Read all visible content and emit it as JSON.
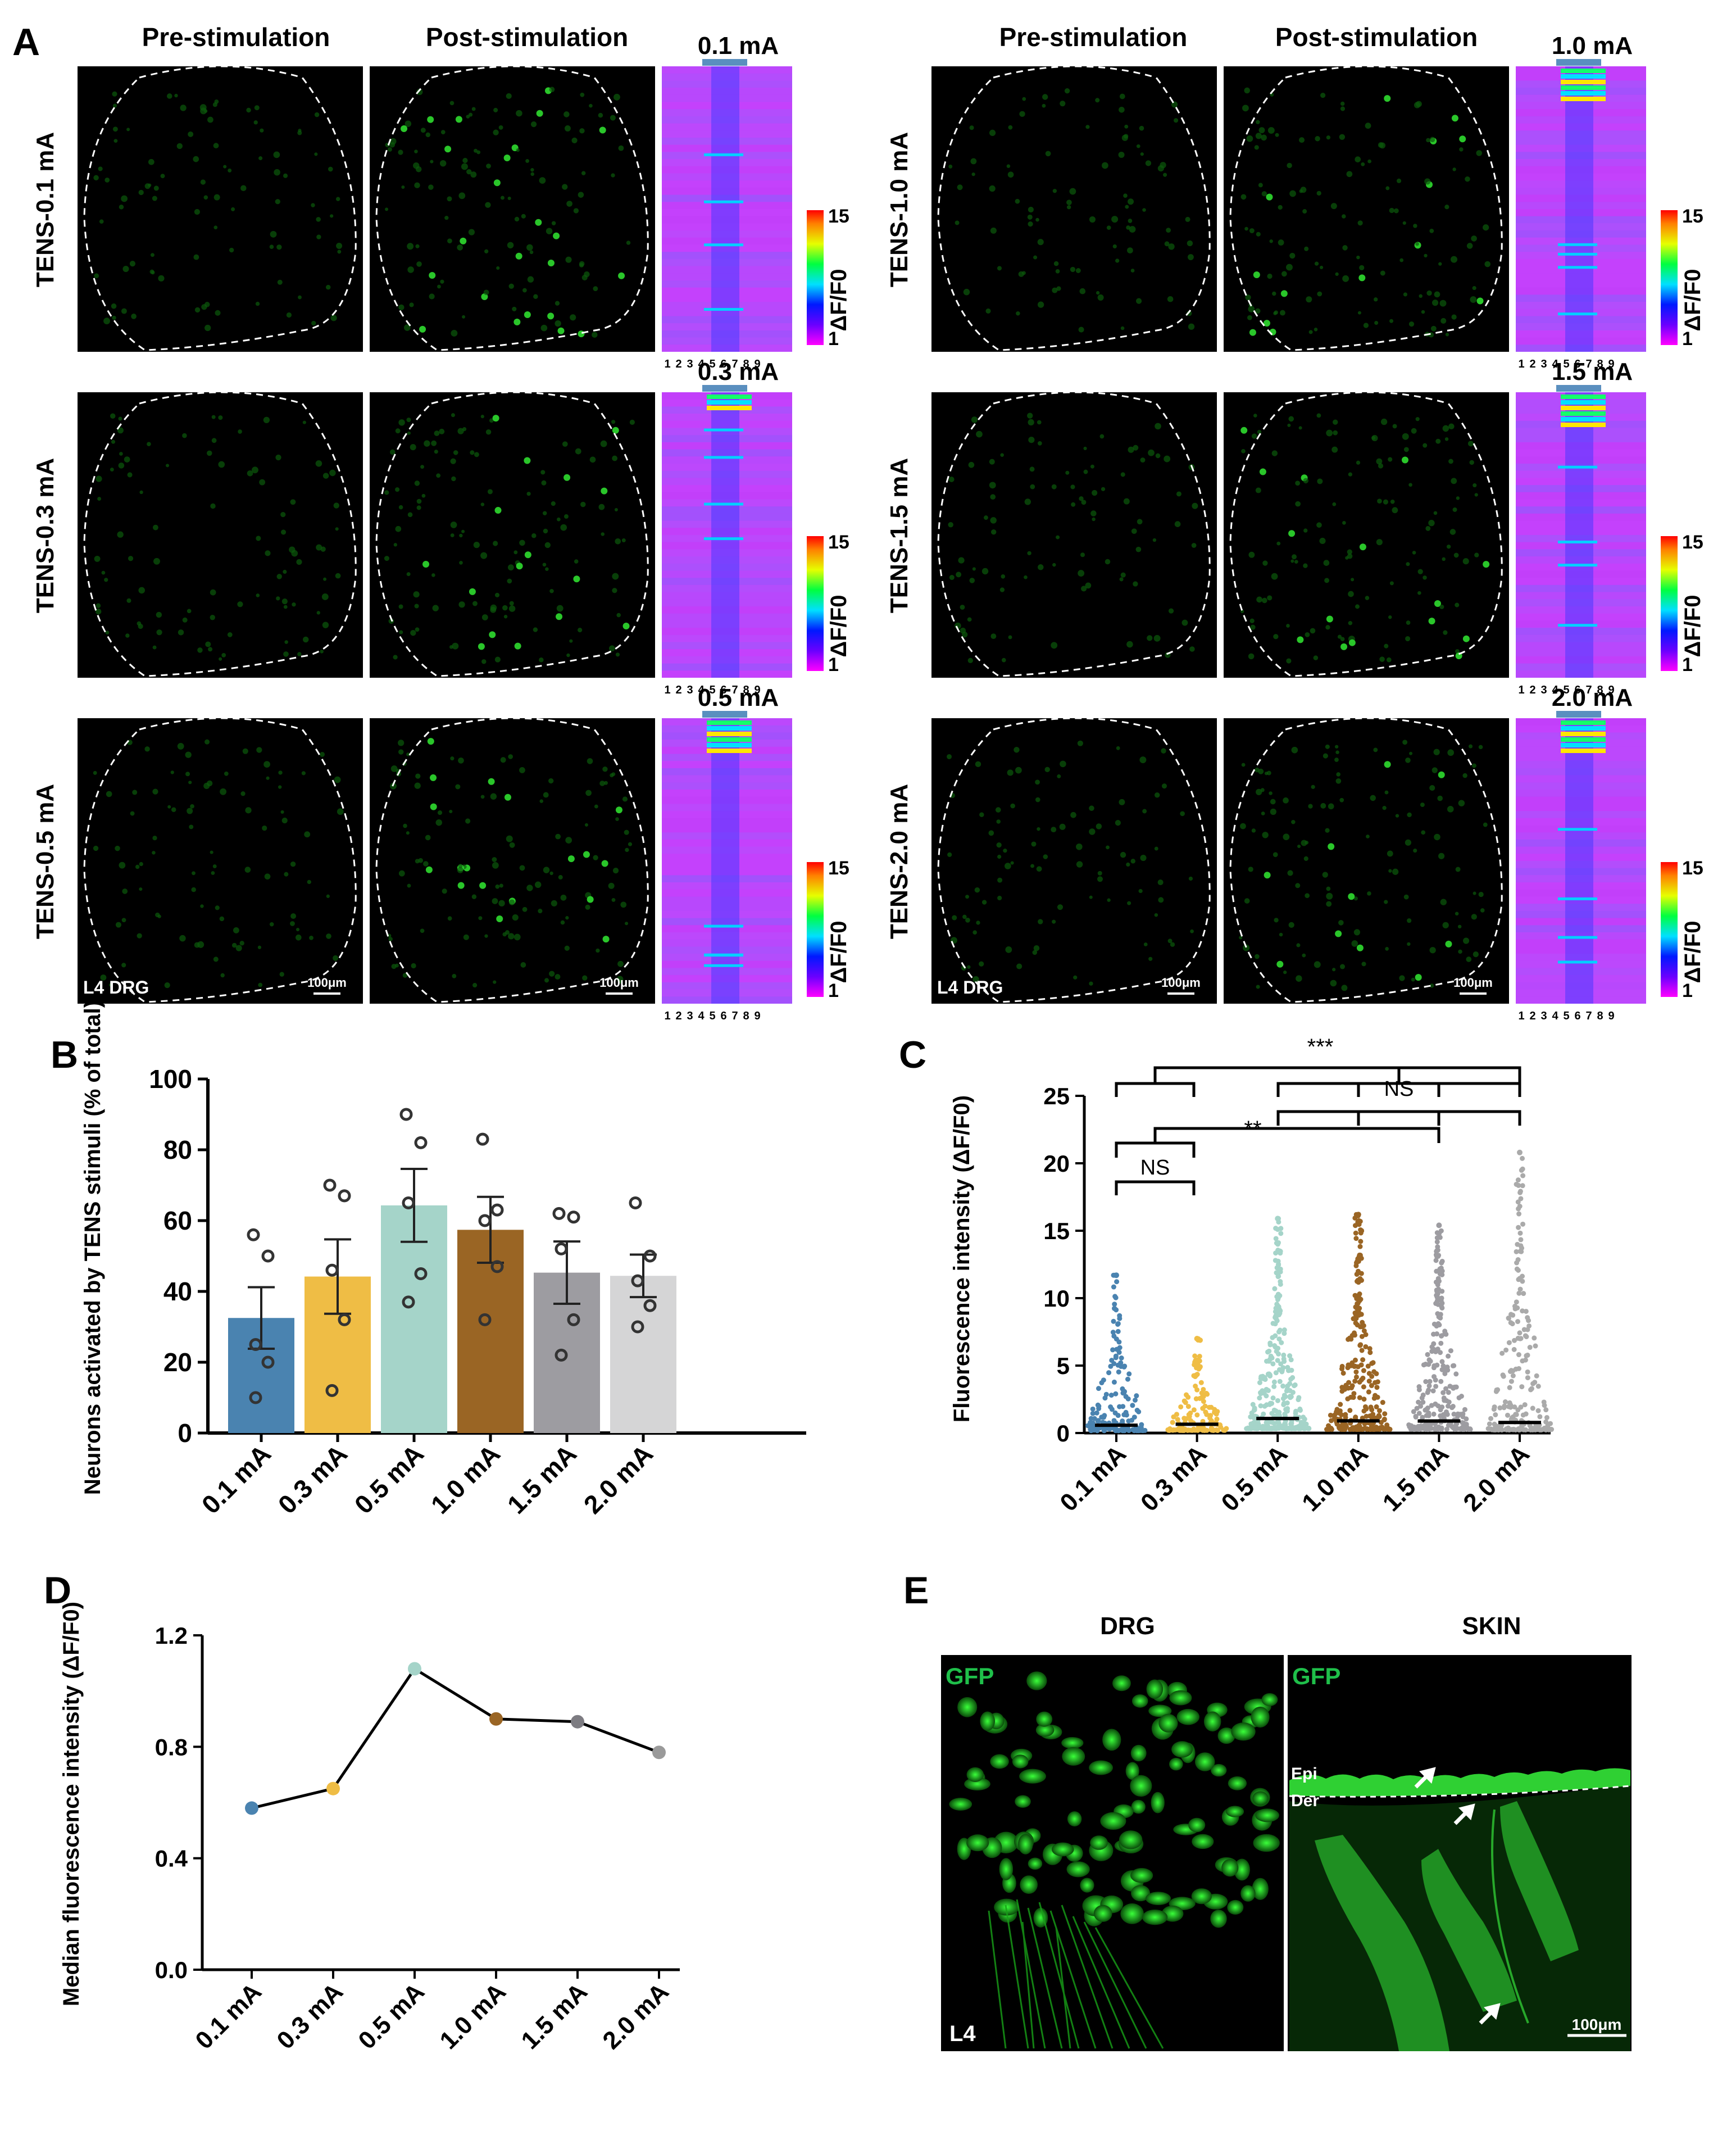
{
  "panel_letters": {
    "a": "A",
    "b": "B",
    "c": "C",
    "d": "D",
    "e": "E"
  },
  "panelA": {
    "col_pre": "Pre-stimulation",
    "col_post": "Post-stimulation",
    "rows": [
      {
        "label": "TENS-0.1 mA",
        "heat_title": "0.1 mA"
      },
      {
        "label": "TENS-0.3 mA",
        "heat_title": "0.3 mA"
      },
      {
        "label": "TENS-0.5 mA",
        "heat_title": "0.5 mA"
      },
      {
        "label": "TENS-1.0 mA",
        "heat_title": "1.0 mA"
      },
      {
        "label": "TENS-1.5 mA",
        "heat_title": "1.5 mA"
      },
      {
        "label": "TENS-2.0 mA",
        "heat_title": "2.0 mA"
      }
    ],
    "region_label": "L4 DRG",
    "scale_bar": "100μm",
    "colorbar_max": "15",
    "colorbar_min": "1",
    "colorbar_label": "ΔF/F0",
    "heat_ticks": [
      "1",
      "2",
      "3",
      "4",
      "5",
      "6",
      "7",
      "8",
      "9"
    ]
  },
  "panelE": {
    "titles": [
      "DRG",
      "SKIN"
    ],
    "gfp": "GFP",
    "l4": "L4",
    "epi": "Epi",
    "der": "Der",
    "scale_bar": "100μm"
  },
  "stats": {
    "c1": "***",
    "c2": "NS",
    "c3": "**",
    "c4": "NS"
  },
  "colors": {
    "0.1 mA": "#4a83b0",
    "0.3 mA": "#efbd45",
    "0.5 mA": "#a5d4c9",
    "1.0 mA": "#9a6524",
    "1.5 mA": "#9d9ca1",
    "2.0 mA": "#d5d5d6",
    "cell_green": "#1fc21f",
    "tissue_green": "#22b82a"
  },
  "chart_data": [
    {
      "panel": "B",
      "type": "bar",
      "categories": [
        "0.1 mA",
        "0.3 mA",
        "0.5 mA",
        "1.0 mA",
        "1.5 mA",
        "2.0 mA"
      ],
      "values": [
        32.5,
        44.2,
        64.3,
        57.4,
        45.3,
        44.4
      ],
      "sem": [
        8.7,
        10.5,
        10.3,
        9.3,
        8.8,
        6.0
      ],
      "points": [
        [
          10,
          20,
          25,
          50,
          56
        ],
        [
          12,
          32,
          46,
          67,
          70
        ],
        [
          37,
          45,
          65,
          82,
          90
        ],
        [
          32,
          47,
          60,
          63,
          83
        ],
        [
          22,
          32,
          52,
          61,
          62
        ],
        [
          30,
          36,
          43,
          50,
          65
        ]
      ],
      "ylabel": "Neurons activated by TENS stimuli  (% of total)",
      "ylim": [
        0,
        100
      ],
      "yticks": [
        "0",
        "20",
        "40",
        "60",
        "80",
        "100"
      ]
    },
    {
      "panel": "C",
      "type": "scatter",
      "categories": [
        "0.1 mA",
        "0.3 mA",
        "0.5 mA",
        "1.0 mA",
        "1.5 mA",
        "2.0 mA"
      ],
      "medians": [
        0.58,
        0.65,
        1.08,
        0.9,
        0.89,
        0.78
      ],
      "max_values": [
        11.7,
        7.0,
        15.9,
        16.2,
        15.4,
        20.8
      ],
      "ylabel": "Fluorescence intensity (ΔF/F0)",
      "ylim": [
        0,
        25
      ],
      "yticks": [
        "0",
        "5",
        "10",
        "15",
        "20",
        "25"
      ]
    },
    {
      "panel": "D",
      "type": "line",
      "categories": [
        "0.1 mA",
        "0.3 mA",
        "0.5 mA",
        "1.0 mA",
        "1.5 mA",
        "2.0 mA"
      ],
      "values": [
        0.58,
        0.65,
        1.08,
        0.9,
        0.89,
        0.78
      ],
      "ylabel": "Median fluorescence intensity (ΔF/F0)",
      "ylim": [
        0,
        1.2
      ],
      "yticks": [
        "0.0",
        "0.4",
        "0.8",
        "1.2"
      ]
    }
  ]
}
